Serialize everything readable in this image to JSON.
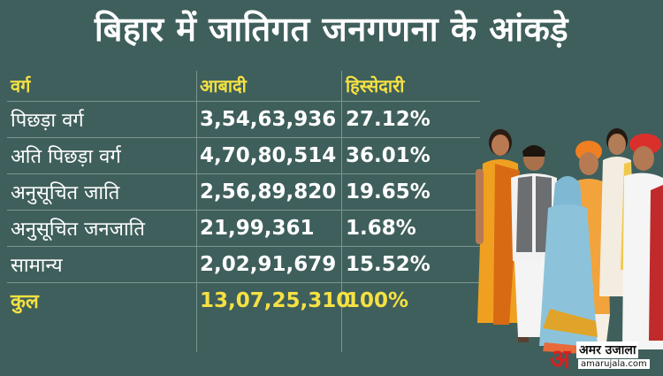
{
  "title": "बिहार में जातिगत जनगणना के आंकड़े",
  "table": {
    "headers": [
      "वर्ग",
      "आबादी",
      "हिस्सेदारी"
    ],
    "rows": [
      {
        "category": "पिछड़ा वर्ग",
        "population": "3,54,63,936",
        "share": "27.12%"
      },
      {
        "category": "अति पिछड़ा वर्ग",
        "population": "4,70,80,514",
        "share": "36.01%"
      },
      {
        "category": "अनुसूचित जाति",
        "population": "2,56,89,820",
        "share": "19.65%"
      },
      {
        "category": "अनुसूचित जनजाति",
        "population": "21,99,361",
        "share": "1.68%"
      },
      {
        "category": "सामान्य",
        "population": "2,02,91,679",
        "share": "15.52%"
      }
    ],
    "total": {
      "category": "कुल",
      "population": "13,07,25,310",
      "share": "100%"
    }
  },
  "logo": {
    "mark": "अ",
    "name": "अमर उजाला",
    "url": "amarujala.com"
  },
  "colors": {
    "background": "#3f5f5c",
    "header_text": "#f5e142",
    "body_text": "#ffffff",
    "logo_red": "#d32222"
  },
  "illustration": "group-of-people-in-traditional-indian-attire"
}
